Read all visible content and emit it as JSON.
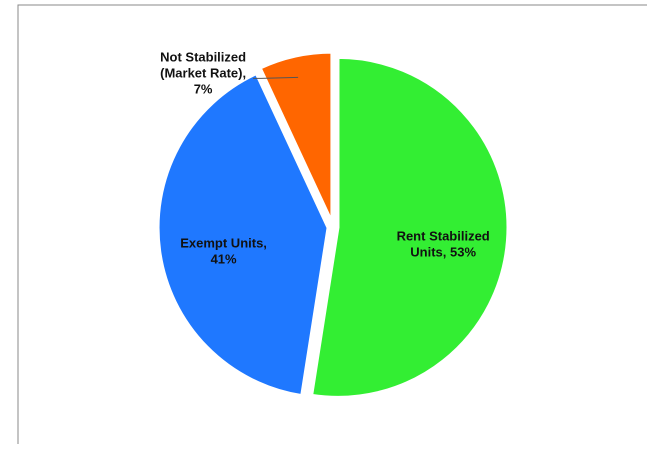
{
  "chart_data": {
    "type": "pie",
    "values": [
      53,
      41,
      7
    ],
    "value_labels": [
      "Rent Stabilized Units, 53%",
      "Exempt Units, 41%",
      "Not Stabilized (Market Rate), 7%"
    ],
    "colors": [
      "#33ee33",
      "#1f78ff",
      "#ff6600"
    ]
  }
}
